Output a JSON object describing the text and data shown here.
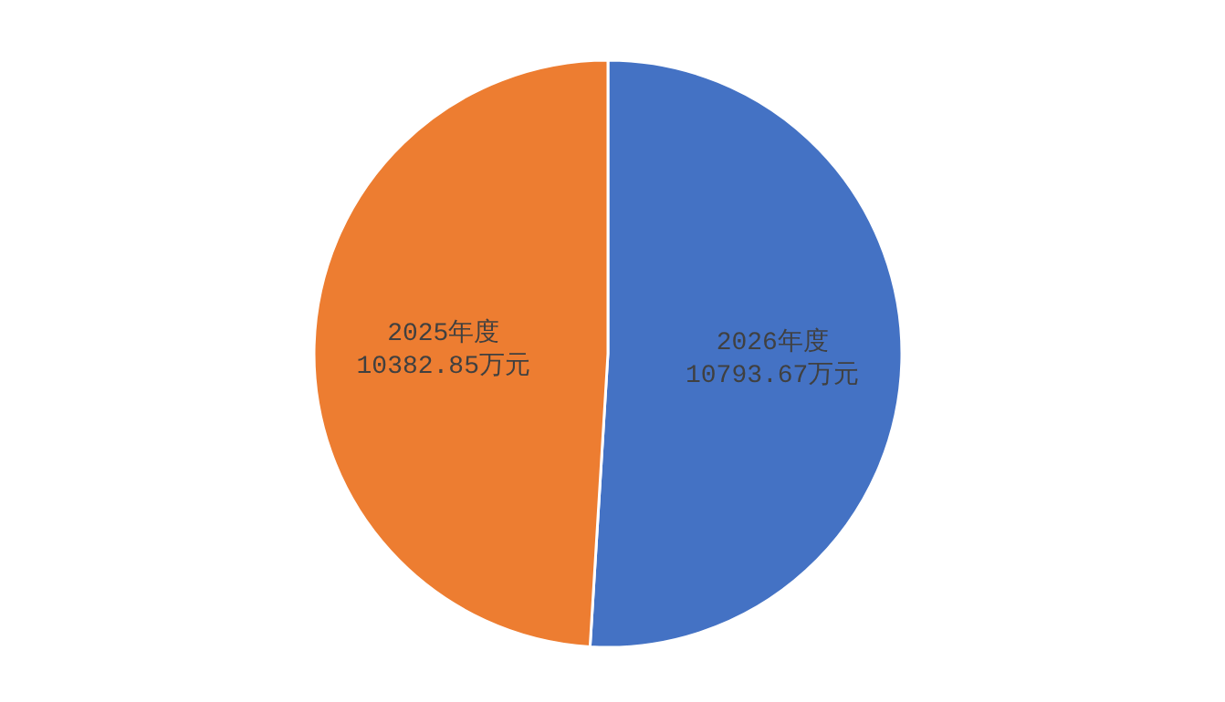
{
  "chart_data": {
    "type": "pie",
    "categories": [
      "2026年度",
      "2025年度"
    ],
    "values": [
      10793.67,
      10382.85
    ],
    "colors": [
      "#4472c4",
      "#ed7d31"
    ],
    "value_labels": [
      "10793.67万元",
      "10382.85万元"
    ]
  }
}
